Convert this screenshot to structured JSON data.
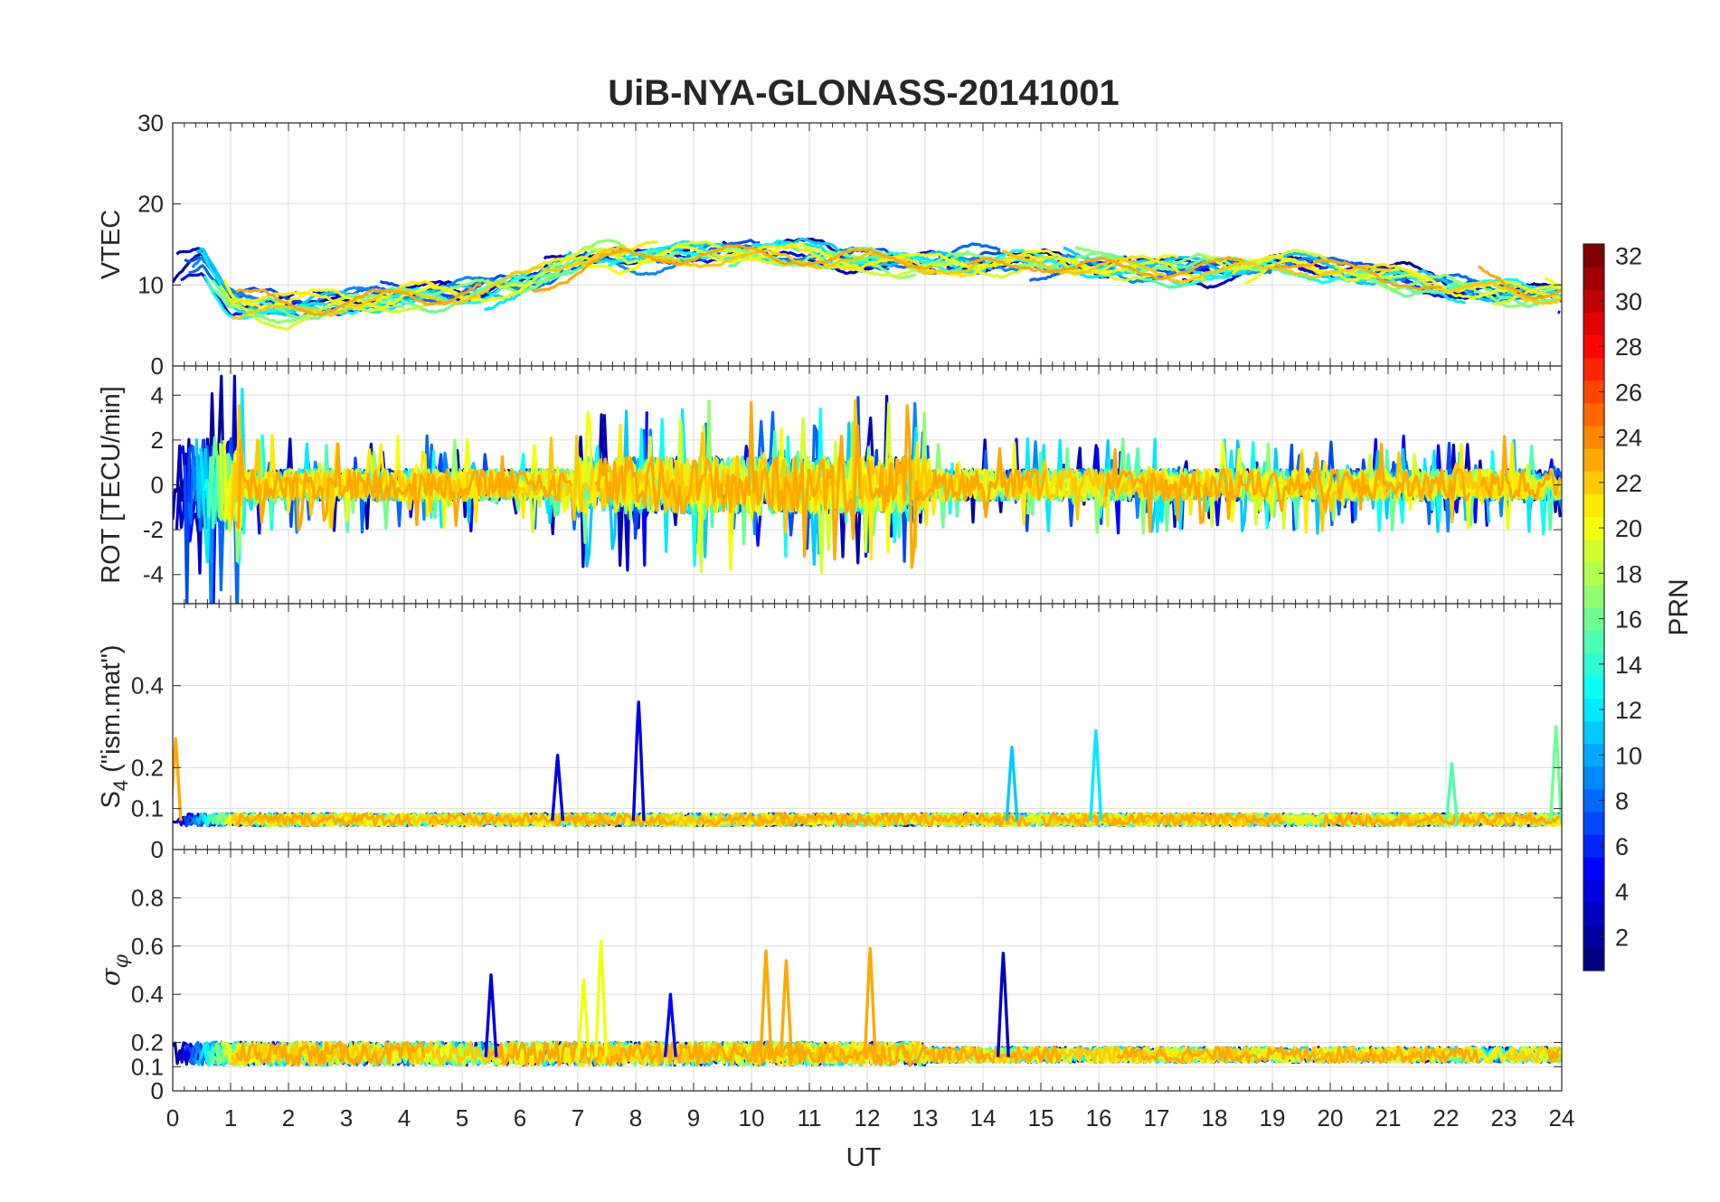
{
  "chart_data": {
    "type": "line",
    "title": "UiB-NYA-GLONASS-20141001",
    "xlabel": "UT",
    "x_ticks": [
      "0",
      "1",
      "2",
      "3",
      "4",
      "5",
      "6",
      "7",
      "8",
      "9",
      "10",
      "11",
      "12",
      "13",
      "14",
      "15",
      "16",
      "17",
      "18",
      "19",
      "20",
      "21",
      "22",
      "23",
      "24"
    ],
    "xlim": [
      0,
      24
    ],
    "grid": true,
    "panels": [
      {
        "id": "vtec",
        "ylabel": "VTEC",
        "ylim": [
          0,
          30
        ],
        "y_ticks": [
          {
            "v": 0,
            "t": "0"
          },
          {
            "v": 10,
            "t": "10"
          },
          {
            "v": 20,
            "t": "20"
          },
          {
            "v": 30,
            "t": "30"
          }
        ],
        "profile": {
          "x": [
            0,
            0.5,
            1,
            2,
            3,
            4,
            5,
            6,
            7,
            7.5,
            8,
            9,
            10,
            11,
            12,
            13,
            14,
            15,
            16,
            17,
            18,
            19,
            20,
            21,
            22,
            23,
            24
          ],
          "y": [
            11,
            13,
            8,
            7,
            8,
            8.5,
            9,
            10,
            13,
            14,
            13.5,
            14,
            14,
            13.5,
            13,
            12.5,
            13,
            13,
            12.5,
            12,
            12,
            12.5,
            12,
            11,
            10,
            9,
            9
          ]
        },
        "spread": 2.5
      },
      {
        "id": "rot",
        "ylabel": "ROT [TECU/min]",
        "ylim": [
          -5.3,
          5.3
        ],
        "y_ticks": [
          {
            "v": -4,
            "t": "-4"
          },
          {
            "v": -2,
            "t": "-2"
          },
          {
            "v": 0,
            "t": "0"
          },
          {
            "v": 2,
            "t": "2"
          },
          {
            "v": 4,
            "t": "4"
          }
        ],
        "profile": {
          "x": [
            0,
            12,
            24
          ],
          "y": [
            0,
            0,
            0
          ]
        },
        "spread": 1.3
      },
      {
        "id": "s4",
        "ylabel_main": "S",
        "ylabel_sub": "4",
        "ylabel_rest": " (\"ism.mat\")",
        "ylim": [
          0,
          0.6
        ],
        "y_ticks": [
          {
            "v": 0,
            "t": "0"
          },
          {
            "v": 0.1,
            "t": "0.1"
          },
          {
            "v": 0.2,
            "t": "0.2"
          },
          {
            "v": 0.4,
            "t": "0.4"
          }
        ],
        "profile": {
          "x": [
            0,
            12,
            24
          ],
          "y": [
            0.07,
            0.07,
            0.07
          ]
        },
        "spread": 0.025,
        "spikes": [
          {
            "x": 0.05,
            "y": 0.27,
            "prn": 23
          },
          {
            "x": 6.65,
            "y": 0.23,
            "prn": 4
          },
          {
            "x": 8.05,
            "y": 0.36,
            "prn": 4
          },
          {
            "x": 14.5,
            "y": 0.25,
            "prn": 11
          },
          {
            "x": 15.95,
            "y": 0.29,
            "prn": 12
          },
          {
            "x": 22.1,
            "y": 0.21,
            "prn": 15
          },
          {
            "x": 23.9,
            "y": 0.3,
            "prn": 16
          }
        ]
      },
      {
        "id": "sigphi",
        "ylabel_main": "σ",
        "ylabel_sub": "φ",
        "ylim": [
          0,
          1
        ],
        "y_ticks": [
          {
            "v": 0,
            "t": "0"
          },
          {
            "v": 0.1,
            "t": "0.1"
          },
          {
            "v": 0.2,
            "t": "0.2"
          },
          {
            "v": 0.4,
            "t": "0.4"
          },
          {
            "v": 0.6,
            "t": "0.6"
          },
          {
            "v": 0.8,
            "t": "0.8"
          }
        ],
        "profile": {
          "x": [
            0,
            12,
            24
          ],
          "y": [
            0.14,
            0.14,
            0.14
          ]
        },
        "spread": 0.05,
        "spikes": [
          {
            "x": 5.5,
            "y": 0.48,
            "prn": 4
          },
          {
            "x": 7.4,
            "y": 0.62,
            "prn": 20
          },
          {
            "x": 7.1,
            "y": 0.46,
            "prn": 20
          },
          {
            "x": 10.25,
            "y": 0.58,
            "prn": 23
          },
          {
            "x": 10.6,
            "y": 0.54,
            "prn": 23
          },
          {
            "x": 12.05,
            "y": 0.59,
            "prn": 23
          },
          {
            "x": 14.35,
            "y": 0.57,
            "prn": 3
          },
          {
            "x": 8.6,
            "y": 0.4,
            "prn": 5
          }
        ]
      }
    ],
    "colorbar": {
      "label": "PRN",
      "range": [
        1,
        32
      ],
      "ticks": [
        "2",
        "4",
        "6",
        "8",
        "10",
        "12",
        "14",
        "16",
        "18",
        "20",
        "22",
        "24",
        "26",
        "28",
        "30",
        "32"
      ],
      "colormap": "jet"
    },
    "series_prns": [
      2,
      3,
      5,
      7,
      8,
      9,
      11,
      12,
      13,
      15,
      16,
      17,
      19,
      20,
      21,
      22,
      23
    ]
  }
}
